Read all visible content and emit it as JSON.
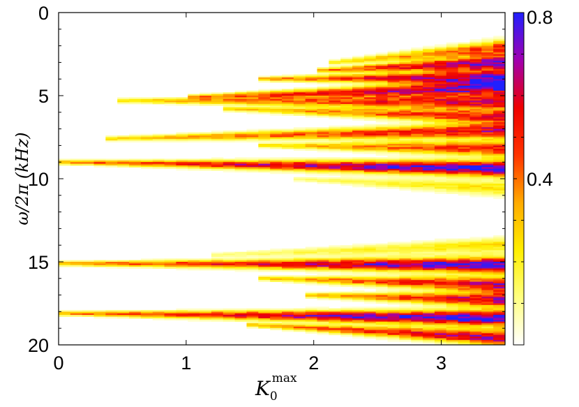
{
  "chart_data": {
    "type": "heatmap",
    "title": "",
    "xlabel_main": "K",
    "xlabel_sub": "0",
    "xlabel_sup": "max",
    "ylabel": "ω/2π  (kHz)",
    "xlim": [
      0,
      3.5
    ],
    "ylim": [
      0,
      20
    ],
    "y_inverted": true,
    "x_ticks": [
      0,
      1,
      2,
      3
    ],
    "y_ticks": [
      0,
      5,
      10,
      15,
      20
    ],
    "colorbar": {
      "range": [
        0,
        0.8
      ],
      "tick_labels": [
        {
          "value": 0.4,
          "label": "0.4"
        },
        {
          "value": 0.8,
          "label": "0.8"
        }
      ],
      "minor_ticks": [
        0.1,
        0.2,
        0.3,
        0.5,
        0.6,
        0.7
      ],
      "colormap": [
        "#ffffff",
        "#ffff80",
        "#ffee00",
        "#ffaa00",
        "#ff3300",
        "#ee0000",
        "#a000b0",
        "#2020ff"
      ]
    },
    "modes": [
      {
        "k0": 2.15,
        "y0": 3.0,
        "y1": 2.1,
        "amp": 0.5
      },
      {
        "k0": 2.0,
        "y0": 3.5,
        "y1": 3.0,
        "amp": 0.75
      },
      {
        "k0": 1.6,
        "y0": 4.0,
        "y1": 3.9,
        "amp": 0.75
      },
      {
        "k0": 1.0,
        "y0": 5.1,
        "y1": 4.5,
        "amp": 0.75
      },
      {
        "k0": 0.45,
        "y0": 5.3,
        "y1": 5.4,
        "amp": 0.6
      },
      {
        "k0": 1.3,
        "y0": 5.8,
        "y1": 6.3,
        "amp": 0.55
      },
      {
        "k0": 0.35,
        "y0": 7.6,
        "y1": 7.1,
        "amp": 0.6
      },
      {
        "k0": 1.6,
        "y0": 8.0,
        "y1": 8.2,
        "amp": 0.55
      },
      {
        "k0": 0.0,
        "y0": 9.0,
        "y1": 9.4,
        "amp": 0.85
      },
      {
        "k0": 1.8,
        "y0": 10.0,
        "y1": 10.6,
        "amp": 0.25
      },
      {
        "k0": 1.2,
        "y0": 14.6,
        "y1": 14.0,
        "amp": 0.25
      },
      {
        "k0": 0.0,
        "y0": 15.1,
        "y1": 15.2,
        "amp": 0.8
      },
      {
        "k0": 1.6,
        "y0": 16.0,
        "y1": 16.4,
        "amp": 0.65
      },
      {
        "k0": 1.9,
        "y0": 17.0,
        "y1": 17.3,
        "amp": 0.65
      },
      {
        "k0": 0.0,
        "y0": 18.1,
        "y1": 18.4,
        "amp": 0.85
      },
      {
        "k0": 1.5,
        "y0": 18.8,
        "y1": 19.6,
        "amp": 0.7
      }
    ]
  }
}
